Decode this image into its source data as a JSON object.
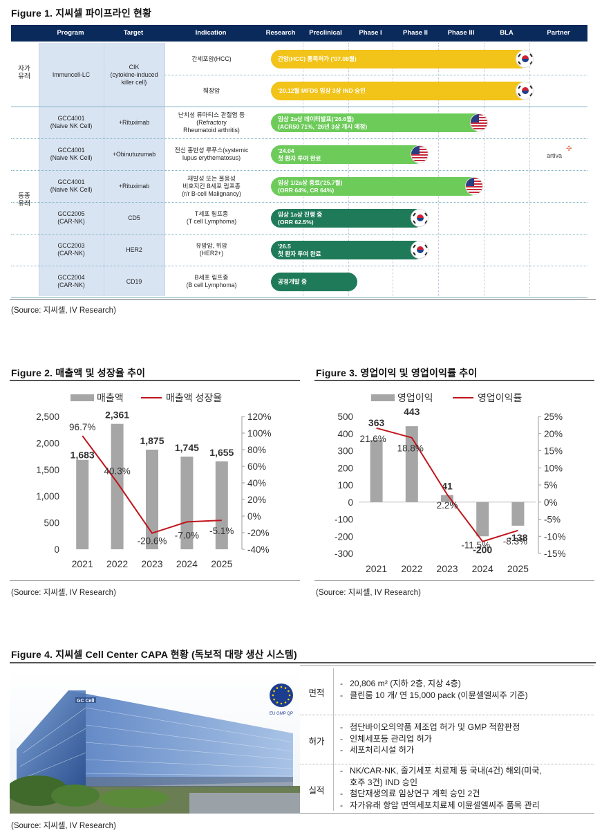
{
  "fig1": {
    "title": "Figure 1. 지씨셀 파이프라인 현황",
    "headers": [
      "Program",
      "Target",
      "Indication",
      "Research",
      "Preclinical",
      "Phase I",
      "Phase II",
      "Phase III",
      "BLA",
      "Partner"
    ],
    "groups": [
      {
        "label": "자가\n유래"
      },
      {
        "label": "동종\n유래"
      }
    ],
    "rows": [
      {
        "program": "Immuncell-LC",
        "target": "CIK\n(cytokine-induced\nkiller cell)",
        "indication": "간세포암(HCC)",
        "bar": "간암(HCC) 품목허가 ('07.08월)",
        "color": "yellow",
        "stage_reached": 8,
        "flag": "KR"
      },
      {
        "program": "",
        "target": "",
        "indication": "췌장암",
        "bar": "'20.12월 MFDS 임상 3상 IND 승인",
        "color": "yellow",
        "stage_reached": 6.3,
        "flag": "KR"
      },
      {
        "program": "GCC4001\n(Naive NK Cell)",
        "target": "+Rituximab",
        "indication": "난치성 류마티스 관절염 등\n(Refractory\nRheumatoid arthritis)",
        "bar": "임상 2a상 데이터발표('26.6월)\n(ACR50 71%, '26년 3상 개시 예정)",
        "color": "lightgreen",
        "stage_reached": 5,
        "flag": "US"
      },
      {
        "program": "GCC4001\n(Naive NK Cell)",
        "target": "+Obinutuzumab",
        "indication": "전신 홍반성 루푸스(systemic\nlupus erythematosus)",
        "bar": "'24.04\n첫 환자 투여 완료",
        "color": "lightgreen",
        "stage_reached": 3.7,
        "flag": "US"
      },
      {
        "program": "GCC4001\n(Naive NK Cell)",
        "target": "+Rituximab",
        "indication": "재발성 또는 불응성\n비호지킨 B세포 림프종\n(r/r B-cell Malignancy)",
        "bar": "임상 1/2a상 종료('25.7월)\n(ORR 64%, CR 64%)",
        "color": "lightgreen",
        "stage_reached": 4.9,
        "flag": "US"
      },
      {
        "program": "GCC2005\n(CAR-NK)",
        "target": "CD5",
        "indication": "T세포 림프종\n(T cell Lymphoma)",
        "bar": "임상 1a상 진행 중\n(ORR 62.5%)",
        "color": "darkgreen",
        "stage_reached": 3.7,
        "flag": "KR"
      },
      {
        "program": "GCC2003\n(CAR-NK)",
        "target": "HER2",
        "indication": "유방암, 위암\n(HER2+)",
        "bar": "'26.5\n첫 환자 투여 완료",
        "color": "darkgreen",
        "stage_reached": 3.7,
        "flag": "KR"
      },
      {
        "program": "GCC2004\n(CAR-NK)",
        "target": "CD19",
        "indication": "B세포 림프종\n(B cell Lymphoma)",
        "bar": "공정개발 중",
        "color": "darkgreen",
        "stage_reached": 2.2,
        "flag": ""
      }
    ],
    "partner": "artiva",
    "source": "(Source: 지씨셀, IV Research)"
  },
  "fig2": {
    "title": "Figure 2. 매출액 및 성장율 추이",
    "source": "(Source: 지씨셀, IV Research)"
  },
  "fig3": {
    "title": "Figure 3. 영업이익 및 영업이익률 추이",
    "source": "(Source: 지씨셀, IV Research)"
  },
  "chart_data": [
    {
      "type": "bar+line",
      "categories": [
        "2021",
        "2022",
        "2023",
        "2024",
        "2025"
      ],
      "series": [
        {
          "name": "매출액",
          "type": "bar",
          "axis": "left",
          "values": [
            1683,
            2361,
            1875,
            1745,
            1655
          ],
          "labels": [
            "1,683",
            "2,361",
            "1,875",
            "1,745",
            "1,655"
          ]
        },
        {
          "name": "매출액 성장율",
          "type": "line",
          "axis": "right",
          "values": [
            96.7,
            40.3,
            -20.6,
            -7.0,
            -5.1
          ],
          "labels": [
            "96.7%",
            "40.3%",
            "-20.6%",
            "-7.0%",
            "-5.1%"
          ]
        }
      ],
      "left_axis": {
        "min": 0,
        "max": 2500,
        "ticks": [
          "0",
          "500",
          "1,000",
          "1,500",
          "2,000",
          "2,500"
        ]
      },
      "right_axis": {
        "min": -40,
        "max": 120,
        "ticks": [
          "-40%",
          "-20%",
          "0%",
          "20%",
          "40%",
          "60%",
          "80%",
          "100%",
          "120%"
        ]
      },
      "bar_color": "#a6a6a6",
      "line_color": "#c0141c",
      "legend": "top"
    },
    {
      "type": "bar+line",
      "categories": [
        "2021",
        "2022",
        "2023",
        "2024",
        "2025"
      ],
      "series": [
        {
          "name": "영업이익",
          "type": "bar",
          "axis": "left",
          "values": [
            363,
            443,
            41,
            -200,
            -138
          ],
          "labels": [
            "363",
            "443",
            "41",
            "-200",
            "-138"
          ]
        },
        {
          "name": "영업이익률",
          "type": "line",
          "axis": "right",
          "values": [
            21.6,
            18.8,
            2.2,
            -11.5,
            -8.3
          ],
          "labels": [
            "21.6%",
            "18.8%",
            "2.2%",
            "-11.5%",
            "-8.3%"
          ]
        }
      ],
      "left_axis": {
        "min": -300,
        "max": 500,
        "ticks": [
          "-300",
          "-200",
          "-100",
          "0",
          "100",
          "200",
          "300",
          "400",
          "500"
        ]
      },
      "right_axis": {
        "min": -15,
        "max": 25,
        "ticks": [
          "-15%",
          "-10%",
          "-5%",
          "0%",
          "5%",
          "10%",
          "15%",
          "20%",
          "25%"
        ]
      },
      "bar_color": "#a6a6a6",
      "line_color": "#c0141c",
      "legend": "top"
    }
  ],
  "fig4": {
    "title": "Figure 4. 지씨셀 Cell Center CAPA 현황 (독보적 대량 생산 시스템)",
    "badge": "EU GMP QP",
    "building_sign": "GC Cell",
    "rows": [
      {
        "key": "면적",
        "items": [
          "20,806 m² (지하 2층, 지상 4층)",
          "클린룸 10 개/ 연 15,000 pack (이뮨셀엘씨주 기준)"
        ]
      },
      {
        "key": "허가",
        "items": [
          "첨단바이오의약품 제조업 허가 및 GMP 적합판정",
          "인체세포등 관리업 허가",
          "세포처리시설 허가"
        ]
      },
      {
        "key": "실적",
        "items": [
          "NK/CAR-NK, 줄기세포 치료제 등 국내(4건) 해외(미국,",
          "호주 3건) IND 승인",
          "첨단재생의료 임상연구 계획 승인 2건",
          "자가유래 항암 면역세포치료제 이뮨셀엘씨주 품목 관리"
        ]
      }
    ],
    "source": "(Source: 지씨셀, IV Research)"
  }
}
